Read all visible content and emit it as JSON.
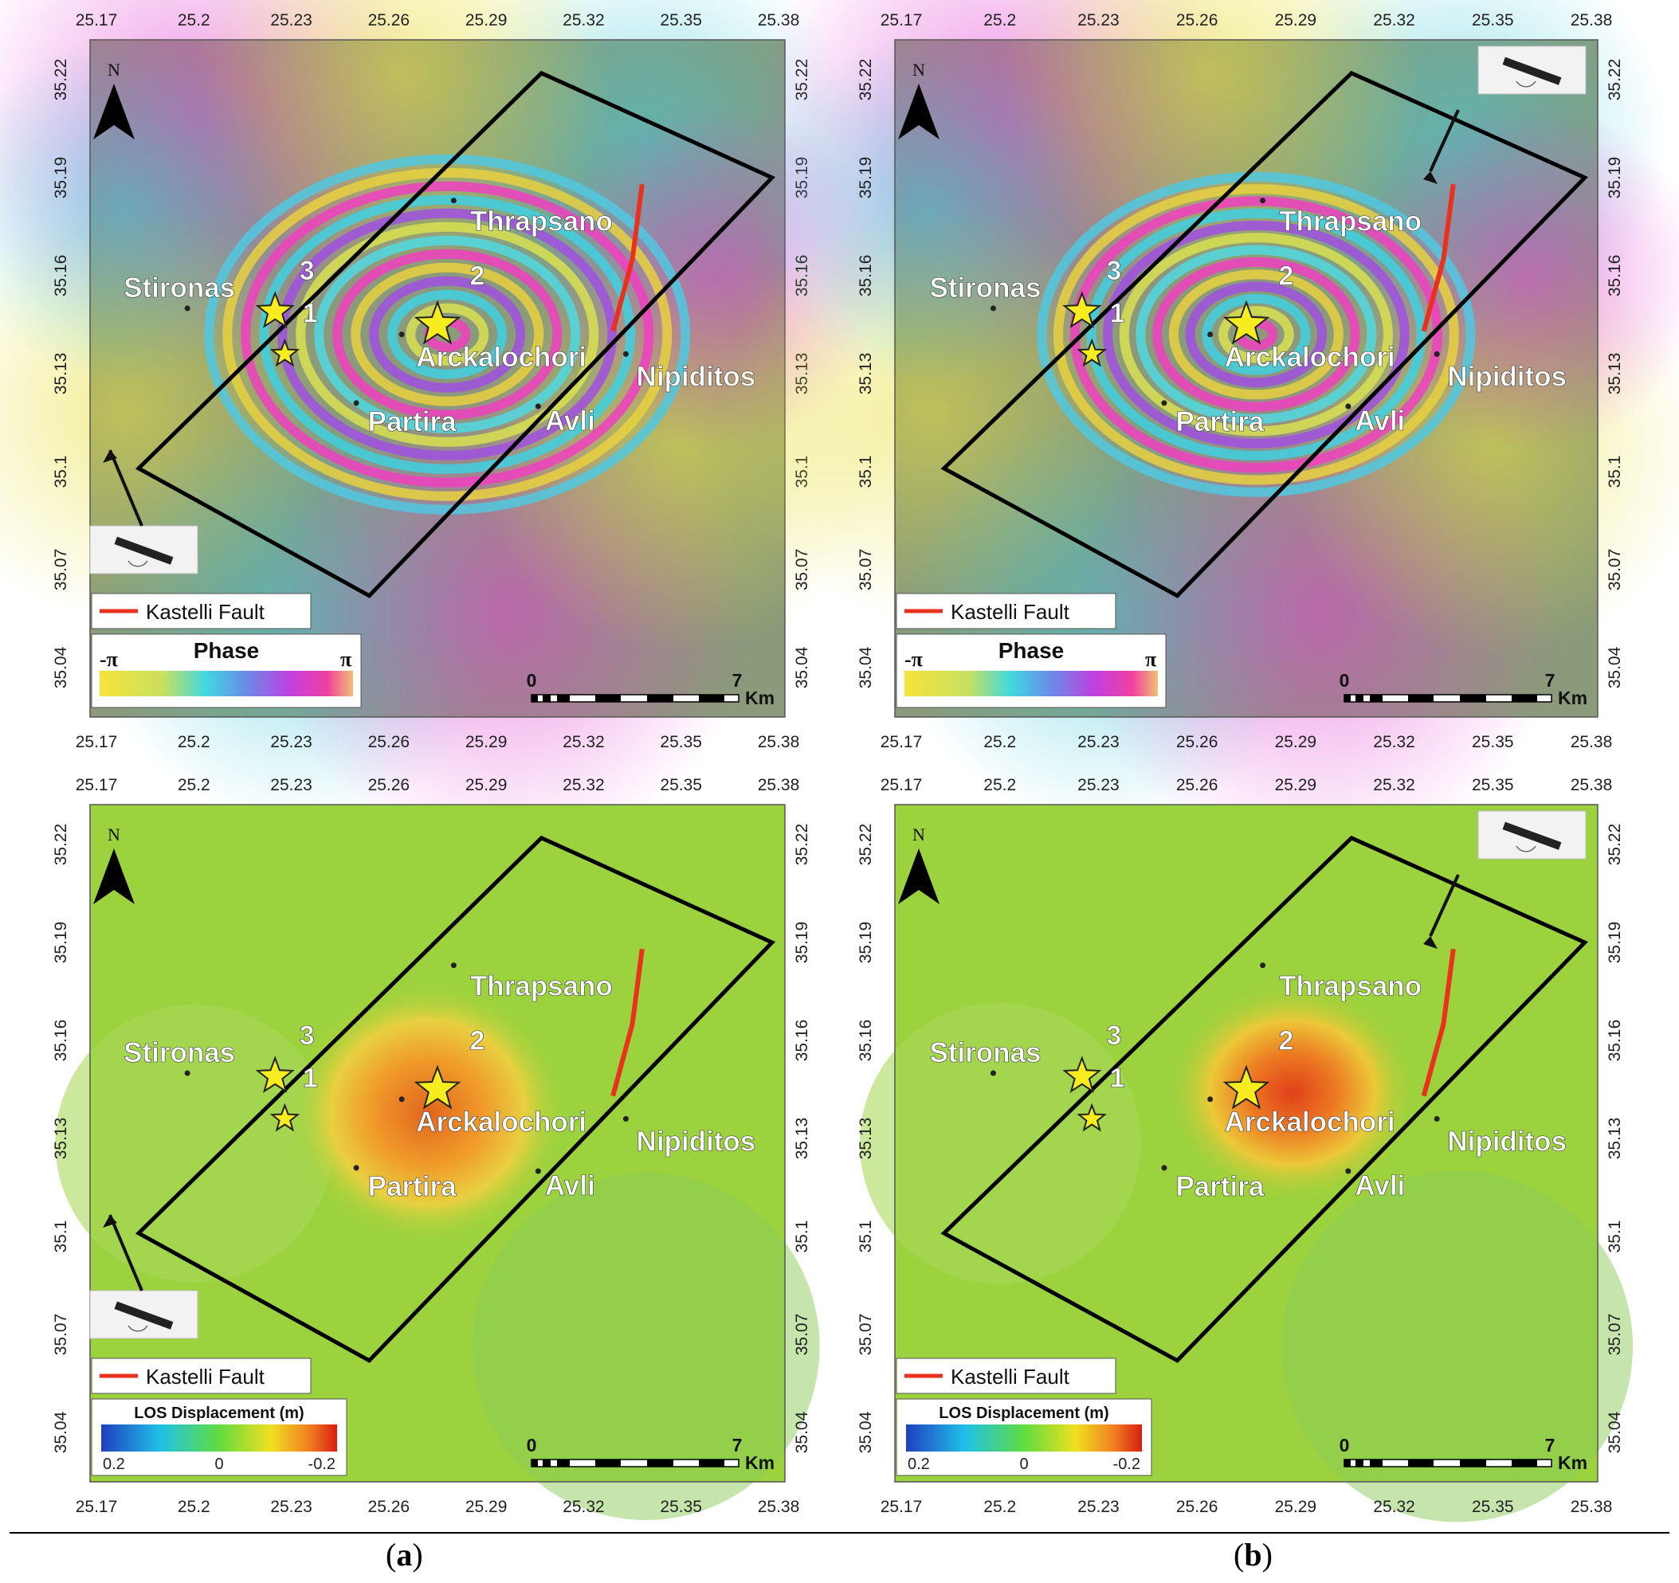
{
  "figure": {
    "lon_ticks": [
      "25.17",
      "25.2",
      "25.23",
      "25.26",
      "25.29",
      "25.32",
      "25.35",
      "25.38"
    ],
    "lat_ticks": [
      "35.22",
      "35.19",
      "35.16",
      "35.13",
      "35.1",
      "35.07",
      "35.04"
    ],
    "north_label": "N",
    "places": [
      {
        "name": "Thrapsano",
        "lon": 25.28,
        "lat": 35.183
      },
      {
        "name": "Stironas",
        "lon": 25.198,
        "lat": 35.15
      },
      {
        "name": "Arckalochori",
        "lon": 25.264,
        "lat": 35.142
      },
      {
        "name": "Nipiditos",
        "lon": 25.333,
        "lat": 35.136
      },
      {
        "name": "Partira",
        "lon": 25.25,
        "lat": 35.121
      },
      {
        "name": "Avli",
        "lon": 25.306,
        "lat": 35.12
      }
    ],
    "epicenters": [
      {
        "id": "1",
        "lon": 25.228,
        "lat": 35.136,
        "size": "small"
      },
      {
        "id": "2",
        "lon": 25.275,
        "lat": 35.145,
        "size": "large"
      },
      {
        "id": "3",
        "lon": 25.225,
        "lat": 35.149,
        "size": "medium"
      }
    ],
    "fault_legend": "Kastelli Fault",
    "phase_legend": {
      "title": "Phase",
      "min": "-π",
      "max": "π"
    },
    "los_legend": {
      "title": "LOS Displacement (m)",
      "ticks": [
        "0.2",
        "0",
        "-0.2"
      ]
    },
    "scalebar": {
      "start": "0",
      "end": "7",
      "unit": "Km"
    },
    "panel_labels": {
      "a": "a",
      "b": "b"
    },
    "colors": {
      "fault": "#e8321e",
      "star": "#f7ec1e",
      "frame": "#000000",
      "label": "#ffffff"
    }
  }
}
